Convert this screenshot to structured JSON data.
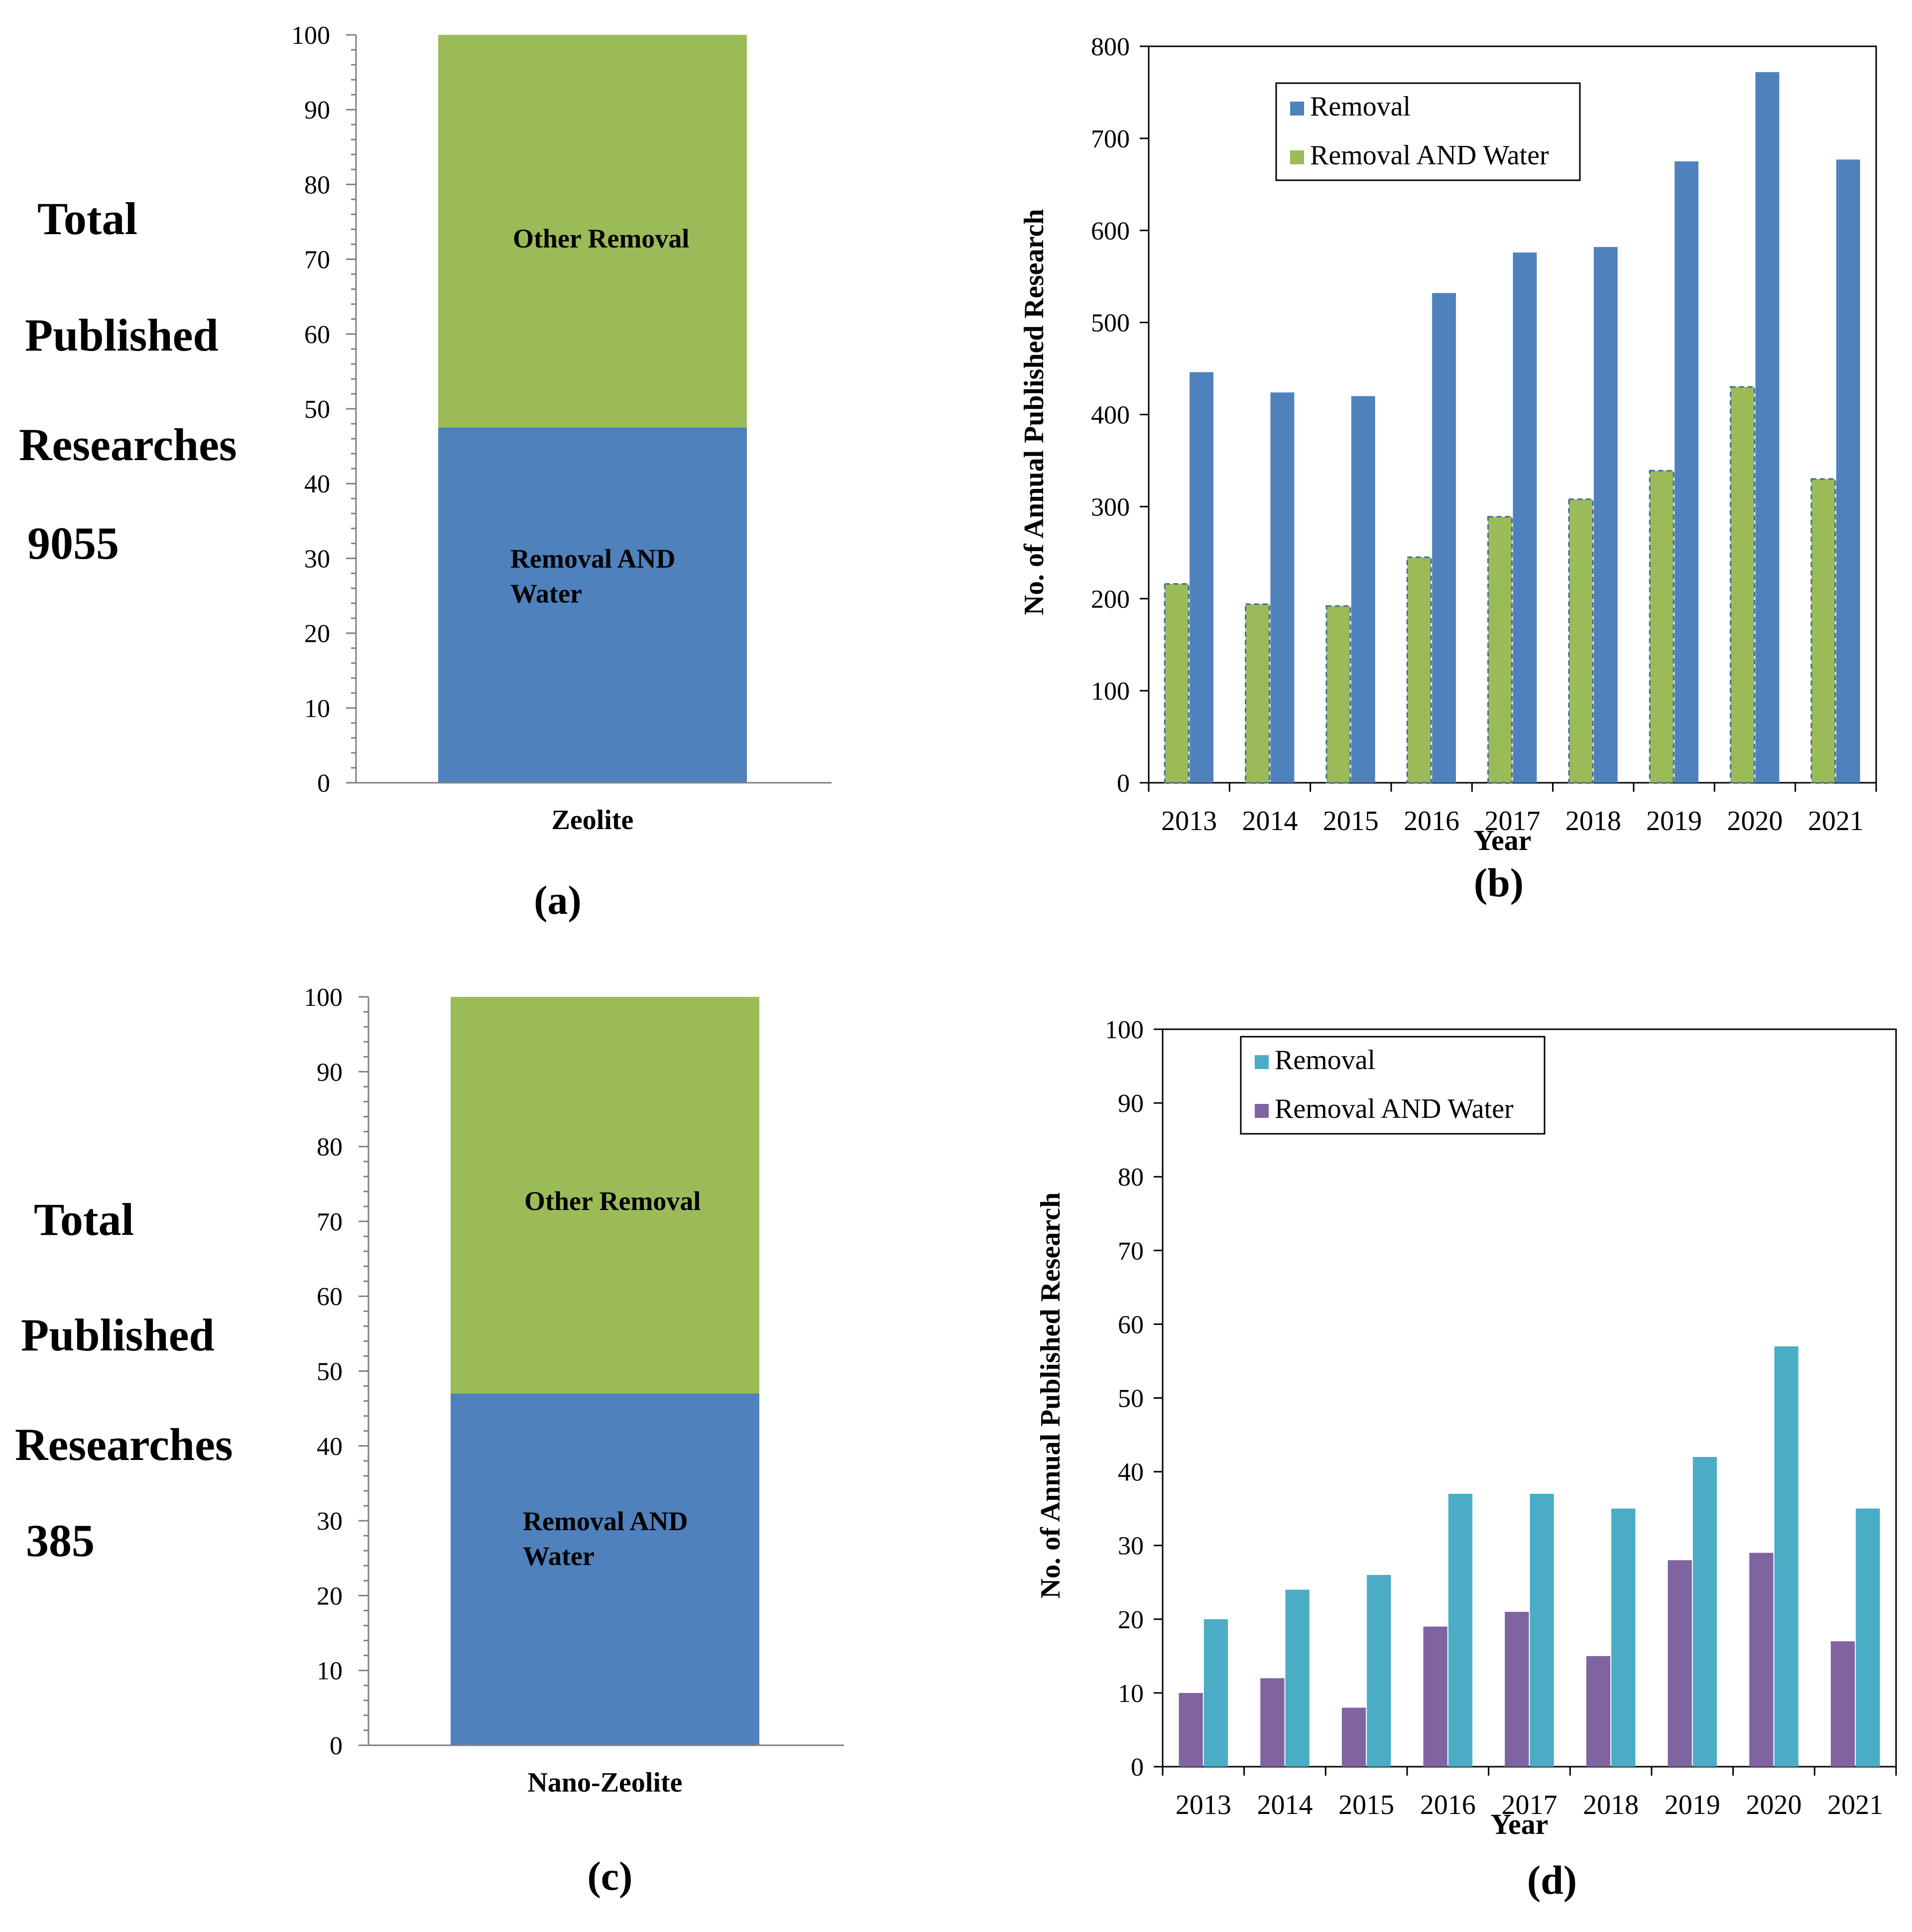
{
  "colors": {
    "stack_blue": "#4F81BD",
    "stack_green": "#9BBB59",
    "b_removal": "#4F81BD",
    "b_water": "#9BBB59",
    "d_removal": "#4BACC6",
    "d_water": "#8064A2",
    "axis": "#808080",
    "frame": "#000000"
  },
  "chart_data": [
    {
      "panel": "a",
      "type": "bar",
      "stacked": true,
      "caption": "(a)",
      "categories": [
        "Zeolite"
      ],
      "series": [
        {
          "name": "Removal AND Water",
          "label_lines": [
            "Removal AND",
            "Water"
          ],
          "values": [
            47.5
          ]
        },
        {
          "name": "Other Removal",
          "label_lines": [
            "Other Removal"
          ],
          "values": [
            52.5
          ]
        }
      ],
      "ylim": [
        0,
        100
      ],
      "yticks": [
        0,
        10,
        20,
        30,
        40,
        50,
        60,
        70,
        80,
        90,
        100
      ],
      "side_text": [
        "Total",
        "Published",
        "Researches",
        "9055"
      ]
    },
    {
      "panel": "b",
      "type": "bar",
      "caption": "(b)",
      "xlabel": "Year",
      "ylabel": "No. of Annual Published Research",
      "categories": [
        "2013",
        "2014",
        "2015",
        "2016",
        "2017",
        "2018",
        "2019",
        "2020",
        "2021"
      ],
      "series": [
        {
          "name": "Removal AND Water",
          "values": [
            216,
            194,
            192,
            245,
            289,
            308,
            339,
            430,
            330
          ]
        },
        {
          "name": "Removal",
          "values": [
            446,
            424,
            420,
            532,
            576,
            582,
            675,
            772,
            677
          ]
        }
      ],
      "legend": [
        "Removal",
        "Removal AND Water"
      ],
      "legend_position": "top-left",
      "ylim": [
        0,
        800
      ],
      "yticks": [
        0,
        100,
        200,
        300,
        400,
        500,
        600,
        700,
        800
      ]
    },
    {
      "panel": "c",
      "type": "bar",
      "stacked": true,
      "caption": "(c)",
      "categories": [
        "Nano-Zeolite"
      ],
      "series": [
        {
          "name": "Removal AND Water",
          "label_lines": [
            "Removal AND",
            "Water"
          ],
          "values": [
            47
          ]
        },
        {
          "name": "Other Removal",
          "label_lines": [
            "Other Removal"
          ],
          "values": [
            53
          ]
        }
      ],
      "ylim": [
        0,
        100
      ],
      "yticks": [
        0,
        10,
        20,
        30,
        40,
        50,
        60,
        70,
        80,
        90,
        100
      ],
      "side_text": [
        "Total",
        "Published",
        "Researches",
        "385"
      ]
    },
    {
      "panel": "d",
      "type": "bar",
      "caption": "(d)",
      "xlabel": "Year",
      "ylabel": "No. of Annual Published Research",
      "categories": [
        "2013",
        "2014",
        "2015",
        "2016",
        "2017",
        "2018",
        "2019",
        "2020",
        "2021"
      ],
      "series": [
        {
          "name": "Removal AND Water",
          "values": [
            10,
            12,
            8,
            19,
            21,
            15,
            28,
            29,
            17
          ]
        },
        {
          "name": "Removal",
          "values": [
            20,
            24,
            26,
            37,
            37,
            35,
            42,
            57,
            35
          ]
        }
      ],
      "legend": [
        "Removal",
        "Removal AND Water"
      ],
      "legend_position": "top-left",
      "ylim": [
        0,
        100
      ],
      "yticks": [
        0,
        10,
        20,
        30,
        40,
        50,
        60,
        70,
        80,
        90,
        100
      ]
    }
  ]
}
